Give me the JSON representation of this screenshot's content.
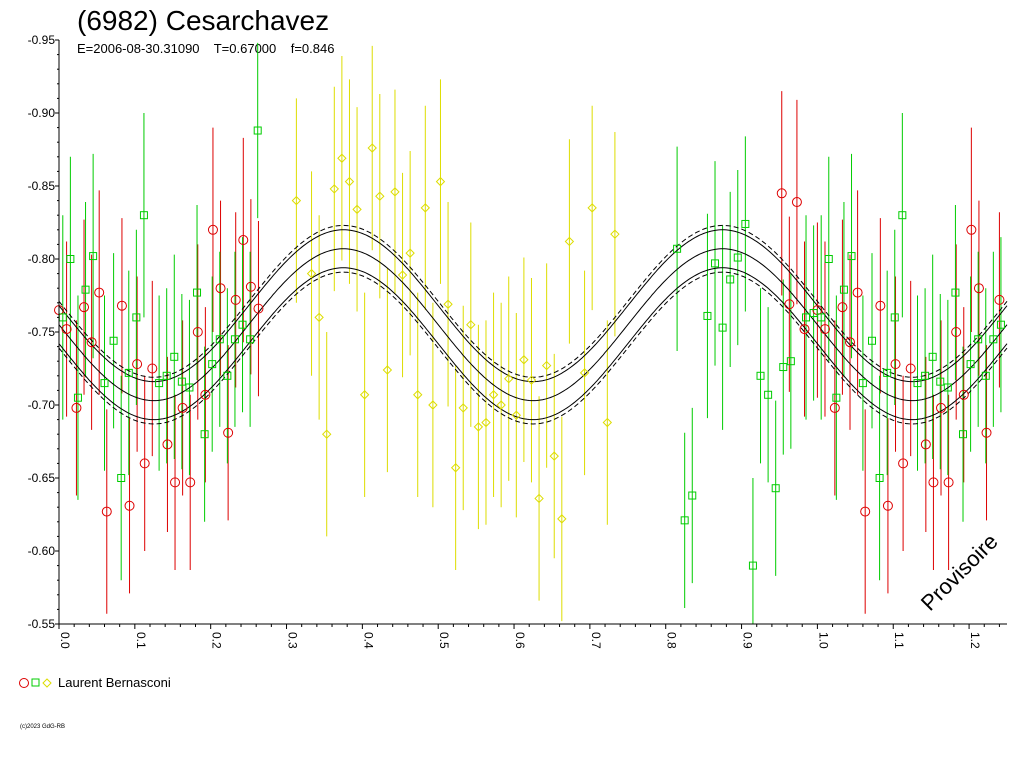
{
  "chart_data": {
    "type": "scatter",
    "title": "(6982) Cesarchavez",
    "subtitle": "E=2006-08-30.31090    T=0.67000    f=0.846",
    "watermark": "Provisoire",
    "copyright": "(c)2023 GdG-RB",
    "legend": {
      "label": "Laurent Bernasconi",
      "placement": "bottom-left"
    },
    "xlim": [
      0,
      1.25
    ],
    "ylim": [
      -0.95,
      -0.55
    ],
    "y_inverted": true,
    "x_ticks": [
      "0.0",
      "0.1",
      "0.2",
      "0.3",
      "0.4",
      "0.5",
      "0.6",
      "0.7",
      "0.8",
      "0.9",
      "1.0",
      "1.1",
      "1.2"
    ],
    "y_ticks": [
      "-0.95",
      "-0.90",
      "-0.85",
      "-0.80",
      "-0.75",
      "-0.70",
      "-0.65",
      "-0.60",
      "-0.55"
    ],
    "fit": {
      "mean": -0.755,
      "amplitude": 0.052,
      "max_phase": 0.375,
      "period_in_phase": 0.5,
      "envelope_offsets": [
        0.013,
        0.016
      ]
    },
    "series": [
      {
        "marker": "circle",
        "color": "#dd0000",
        "points": [
          [
            0.0,
            -0.765,
            0.06
          ],
          [
            0.01,
            -0.752,
            0.06
          ],
          [
            0.023,
            -0.698,
            0.06
          ],
          [
            0.033,
            -0.767,
            0.06
          ],
          [
            0.043,
            -0.743,
            0.06
          ],
          [
            0.053,
            -0.777,
            0.07
          ],
          [
            0.063,
            -0.627,
            0.07
          ],
          [
            0.083,
            -0.768,
            0.06
          ],
          [
            0.093,
            -0.631,
            0.06
          ],
          [
            0.103,
            -0.728,
            0.06
          ],
          [
            0.113,
            -0.66,
            0.06
          ],
          [
            0.123,
            -0.725,
            0.06
          ],
          [
            0.143,
            -0.673,
            0.06
          ],
          [
            0.153,
            -0.647,
            0.06
          ],
          [
            0.163,
            -0.698,
            0.06
          ],
          [
            0.173,
            -0.647,
            0.06
          ],
          [
            0.183,
            -0.75,
            0.06
          ],
          [
            0.193,
            -0.707,
            0.06
          ],
          [
            0.203,
            -0.82,
            0.07
          ],
          [
            0.213,
            -0.78,
            0.06
          ],
          [
            0.223,
            -0.681,
            0.06
          ],
          [
            0.233,
            -0.772,
            0.06
          ],
          [
            0.243,
            -0.813,
            0.07
          ],
          [
            0.253,
            -0.781,
            0.06
          ],
          [
            0.263,
            -0.766,
            0.06
          ],
          [
            0.953,
            -0.845,
            0.07
          ],
          [
            0.963,
            -0.769,
            0.06
          ],
          [
            0.973,
            -0.839,
            0.07
          ],
          [
            0.983,
            -0.752,
            0.06
          ],
          [
            1.0,
            -0.765,
            0.06
          ],
          [
            1.01,
            -0.752,
            0.06
          ],
          [
            1.023,
            -0.698,
            0.06
          ],
          [
            1.033,
            -0.767,
            0.06
          ],
          [
            1.043,
            -0.743,
            0.06
          ],
          [
            1.053,
            -0.777,
            0.07
          ],
          [
            1.063,
            -0.627,
            0.07
          ],
          [
            1.083,
            -0.768,
            0.06
          ],
          [
            1.093,
            -0.631,
            0.06
          ],
          [
            1.103,
            -0.728,
            0.06
          ],
          [
            1.113,
            -0.66,
            0.06
          ],
          [
            1.123,
            -0.725,
            0.06
          ],
          [
            1.143,
            -0.673,
            0.06
          ],
          [
            1.153,
            -0.647,
            0.06
          ],
          [
            1.163,
            -0.698,
            0.06
          ],
          [
            1.173,
            -0.647,
            0.06
          ],
          [
            1.183,
            -0.75,
            0.06
          ],
          [
            1.193,
            -0.707,
            0.06
          ],
          [
            1.203,
            -0.82,
            0.07
          ],
          [
            1.213,
            -0.78,
            0.06
          ],
          [
            1.223,
            -0.681,
            0.06
          ],
          [
            1.24,
            -0.772,
            0.06
          ]
        ]
      },
      {
        "marker": "square",
        "color": "#00cc00",
        "points": [
          [
            0.005,
            -0.76,
            0.07
          ],
          [
            0.015,
            -0.8,
            0.07
          ],
          [
            0.025,
            -0.705,
            0.07
          ],
          [
            0.035,
            -0.779,
            0.06
          ],
          [
            0.045,
            -0.802,
            0.07
          ],
          [
            0.06,
            -0.715,
            0.06
          ],
          [
            0.072,
            -0.744,
            0.06
          ],
          [
            0.082,
            -0.65,
            0.07
          ],
          [
            0.092,
            -0.722,
            0.07
          ],
          [
            0.102,
            -0.76,
            0.06
          ],
          [
            0.112,
            -0.83,
            0.07
          ],
          [
            0.132,
            -0.715,
            0.06
          ],
          [
            0.142,
            -0.72,
            0.06
          ],
          [
            0.152,
            -0.733,
            0.07
          ],
          [
            0.162,
            -0.716,
            0.06
          ],
          [
            0.172,
            -0.712,
            0.06
          ],
          [
            0.182,
            -0.777,
            0.06
          ],
          [
            0.192,
            -0.68,
            0.06
          ],
          [
            0.202,
            -0.728,
            0.06
          ],
          [
            0.212,
            -0.745,
            0.06
          ],
          [
            0.222,
            -0.72,
            0.06
          ],
          [
            0.232,
            -0.745,
            0.06
          ],
          [
            0.242,
            -0.755,
            0.06
          ],
          [
            0.252,
            -0.745,
            0.06
          ],
          [
            0.262,
            -0.888,
            0.06
          ],
          [
            0.815,
            -0.807,
            0.07
          ],
          [
            0.825,
            -0.621,
            0.06
          ],
          [
            0.835,
            -0.638,
            0.06
          ],
          [
            0.855,
            -0.761,
            0.07
          ],
          [
            0.865,
            -0.797,
            0.07
          ],
          [
            0.875,
            -0.753,
            0.07
          ],
          [
            0.885,
            -0.786,
            0.06
          ],
          [
            0.895,
            -0.801,
            0.06
          ],
          [
            0.905,
            -0.824,
            0.06
          ],
          [
            0.915,
            -0.59,
            0.06
          ],
          [
            0.925,
            -0.72,
            0.06
          ],
          [
            0.935,
            -0.707,
            0.06
          ],
          [
            0.945,
            -0.643,
            0.06
          ],
          [
            0.955,
            -0.726,
            0.06
          ],
          [
            0.965,
            -0.73,
            0.06
          ],
          [
            0.985,
            -0.76,
            0.07
          ],
          [
            0.995,
            -0.763,
            0.06
          ],
          [
            1.005,
            -0.76,
            0.07
          ],
          [
            1.015,
            -0.8,
            0.07
          ],
          [
            1.025,
            -0.705,
            0.07
          ],
          [
            1.035,
            -0.779,
            0.06
          ],
          [
            1.045,
            -0.802,
            0.07
          ],
          [
            1.06,
            -0.715,
            0.06
          ],
          [
            1.072,
            -0.744,
            0.06
          ],
          [
            1.082,
            -0.65,
            0.07
          ],
          [
            1.092,
            -0.722,
            0.07
          ],
          [
            1.102,
            -0.76,
            0.06
          ],
          [
            1.112,
            -0.83,
            0.07
          ],
          [
            1.132,
            -0.715,
            0.06
          ],
          [
            1.142,
            -0.72,
            0.06
          ],
          [
            1.152,
            -0.733,
            0.07
          ],
          [
            1.162,
            -0.716,
            0.06
          ],
          [
            1.172,
            -0.712,
            0.06
          ],
          [
            1.182,
            -0.777,
            0.06
          ],
          [
            1.192,
            -0.68,
            0.06
          ],
          [
            1.202,
            -0.728,
            0.06
          ],
          [
            1.212,
            -0.745,
            0.06
          ],
          [
            1.222,
            -0.72,
            0.06
          ],
          [
            1.232,
            -0.745,
            0.06
          ],
          [
            1.242,
            -0.755,
            0.06
          ]
        ]
      },
      {
        "marker": "diamond",
        "color": "#dddd00",
        "points": [
          [
            0.313,
            -0.84,
            0.07
          ],
          [
            0.333,
            -0.79,
            0.07
          ],
          [
            0.343,
            -0.76,
            0.07
          ],
          [
            0.353,
            -0.68,
            0.07
          ],
          [
            0.363,
            -0.848,
            0.07
          ],
          [
            0.373,
            -0.869,
            0.07
          ],
          [
            0.383,
            -0.853,
            0.07
          ],
          [
            0.393,
            -0.834,
            0.07
          ],
          [
            0.403,
            -0.707,
            0.07
          ],
          [
            0.413,
            -0.876,
            0.07
          ],
          [
            0.423,
            -0.843,
            0.07
          ],
          [
            0.433,
            -0.724,
            0.07
          ],
          [
            0.443,
            -0.846,
            0.07
          ],
          [
            0.453,
            -0.789,
            0.07
          ],
          [
            0.463,
            -0.804,
            0.07
          ],
          [
            0.473,
            -0.707,
            0.07
          ],
          [
            0.483,
            -0.835,
            0.07
          ],
          [
            0.493,
            -0.7,
            0.07
          ],
          [
            0.503,
            -0.853,
            0.07
          ],
          [
            0.513,
            -0.769,
            0.07
          ],
          [
            0.523,
            -0.657,
            0.07
          ],
          [
            0.533,
            -0.698,
            0.07
          ],
          [
            0.543,
            -0.755,
            0.07
          ],
          [
            0.553,
            -0.685,
            0.07
          ],
          [
            0.563,
            -0.688,
            0.07
          ],
          [
            0.573,
            -0.707,
            0.07
          ],
          [
            0.583,
            -0.7,
            0.07
          ],
          [
            0.593,
            -0.718,
            0.07
          ],
          [
            0.603,
            -0.693,
            0.07
          ],
          [
            0.613,
            -0.731,
            0.07
          ],
          [
            0.623,
            -0.717,
            0.07
          ],
          [
            0.633,
            -0.636,
            0.07
          ],
          [
            0.643,
            -0.727,
            0.07
          ],
          [
            0.653,
            -0.665,
            0.07
          ],
          [
            0.663,
            -0.622,
            0.07
          ],
          [
            0.673,
            -0.812,
            0.07
          ],
          [
            0.693,
            -0.722,
            0.07
          ],
          [
            0.703,
            -0.835,
            0.07
          ],
          [
            0.723,
            -0.688,
            0.07
          ],
          [
            0.733,
            -0.817,
            0.07
          ]
        ]
      }
    ]
  }
}
